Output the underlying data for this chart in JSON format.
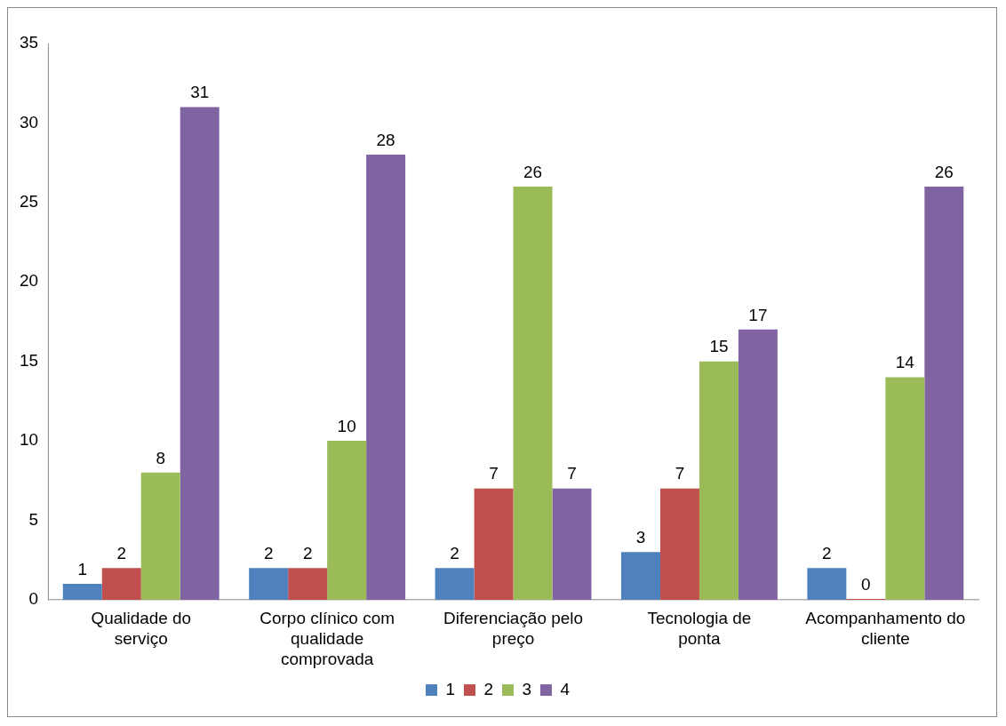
{
  "chart_data": {
    "type": "bar",
    "categories": [
      "Qualidade do serviço",
      "Corpo clínico com qualidade comprovada",
      "Diferenciação pelo preço",
      "Tecnologia de ponta",
      "Acompanhamento do cliente"
    ],
    "series": [
      {
        "name": "1",
        "color": "#4f81bd",
        "values": [
          1,
          2,
          2,
          3,
          2
        ]
      },
      {
        "name": "2",
        "color": "#c0504d",
        "values": [
          2,
          2,
          7,
          7,
          0
        ]
      },
      {
        "name": "3",
        "color": "#9bbb59",
        "values": [
          8,
          10,
          26,
          15,
          14
        ]
      },
      {
        "name": "4",
        "color": "#8064a2",
        "values": [
          31,
          28,
          7,
          17,
          26
        ]
      }
    ],
    "ylim": [
      0,
      35
    ],
    "yticks": [
      0,
      5,
      10,
      15,
      20,
      25,
      30,
      35
    ],
    "grid": false,
    "legend": "bottom",
    "data_labels": true
  }
}
